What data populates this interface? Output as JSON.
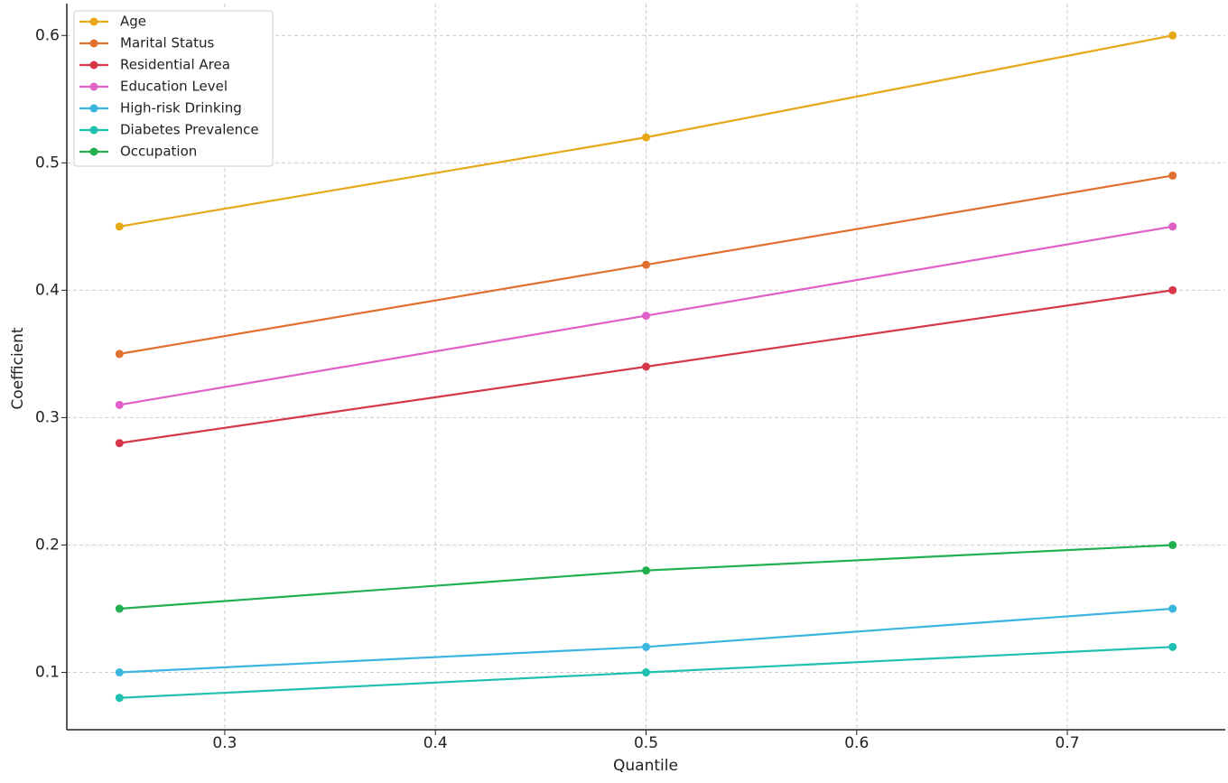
{
  "chart_data": {
    "type": "line",
    "x_label": "Quantile",
    "y_label": "Coefficient",
    "x": [
      0.25,
      0.5,
      0.75
    ],
    "series": [
      {
        "name": "Age",
        "color": "#e6a817",
        "values": [
          0.45,
          0.52,
          0.6
        ]
      },
      {
        "name": "Marital Status",
        "color": "#e07030",
        "values": [
          0.35,
          0.42,
          0.49
        ]
      },
      {
        "name": "Residential Area",
        "color": "#d6384a",
        "values": [
          0.28,
          0.34,
          0.4
        ]
      },
      {
        "name": "Education Level",
        "color": "#e060c8",
        "values": [
          0.31,
          0.38,
          0.45
        ]
      },
      {
        "name": "High-risk Drinking",
        "color": "#3ab5e0",
        "values": [
          0.1,
          0.12,
          0.15
        ]
      },
      {
        "name": "Diabetes Prevalence",
        "color": "#20c0b0",
        "values": [
          0.08,
          0.1,
          0.12
        ]
      },
      {
        "name": "Occupation",
        "color": "#20b050",
        "values": [
          0.15,
          0.18,
          0.2
        ]
      }
    ],
    "xlim": [
      0.225,
      0.775
    ],
    "ylim": [
      0.055,
      0.625
    ],
    "xticks": [
      0.3,
      0.4,
      0.5,
      0.6,
      0.7
    ],
    "yticks": [
      0.1,
      0.2,
      0.3,
      0.4,
      0.5,
      0.6
    ],
    "grid": true,
    "legend": "upper-left"
  }
}
